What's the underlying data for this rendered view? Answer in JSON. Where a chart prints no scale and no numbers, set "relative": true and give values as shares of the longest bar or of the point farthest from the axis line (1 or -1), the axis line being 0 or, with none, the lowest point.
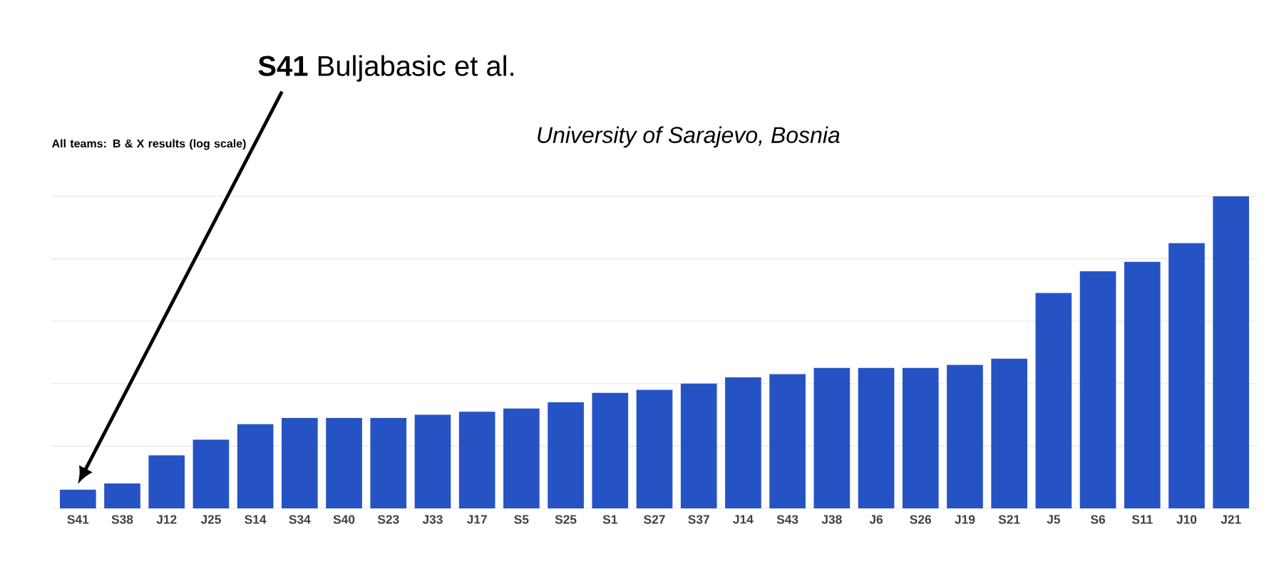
{
  "chart_data": {
    "type": "bar",
    "title": "All teams: B & X results (log scale)",
    "relative": true,
    "grid": "y",
    "color": "#2653c4",
    "categories": [
      "S41",
      "S38",
      "J12",
      "J25",
      "S14",
      "S34",
      "S40",
      "S23",
      "J33",
      "J17",
      "S5",
      "S25",
      "S1",
      "S27",
      "S37",
      "J14",
      "S43",
      "J38",
      "J6",
      "S26",
      "J19",
      "S21",
      "J5",
      "S6",
      "S11",
      "J10",
      "J21"
    ],
    "values": [
      0.06,
      0.08,
      0.17,
      0.22,
      0.27,
      0.29,
      0.29,
      0.29,
      0.3,
      0.31,
      0.32,
      0.34,
      0.37,
      0.38,
      0.4,
      0.42,
      0.43,
      0.45,
      0.45,
      0.45,
      0.46,
      0.48,
      0.69,
      0.76,
      0.79,
      0.85,
      1
    ],
    "annotations": [
      "**S41** Buljabasic et al.",
      "*University of Sarajevo, Bosnia*"
    ]
  }
}
